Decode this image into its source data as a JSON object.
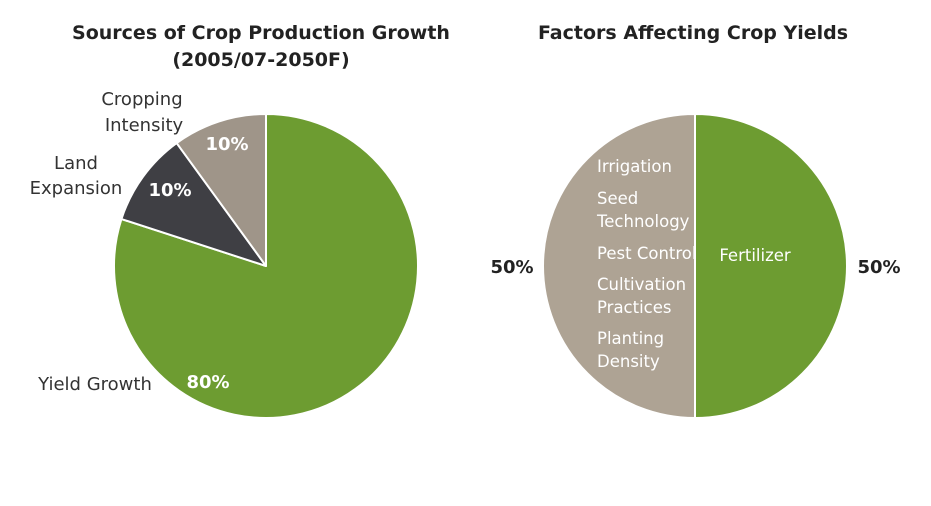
{
  "chart_data": [
    {
      "type": "pie",
      "title": "Sources of Crop Production Growth",
      "subtitle": "(2005/07-2050F)",
      "slices": [
        {
          "label": "Yield Growth",
          "value": 80,
          "value_label": "80%",
          "color": "#6d9c31"
        },
        {
          "label_lines": [
            "Land",
            "Expansion"
          ],
          "value": 10,
          "value_label": "10%",
          "color": "#3f3f44"
        },
        {
          "label_lines": [
            "Cropping",
            "Intensity"
          ],
          "value": 10,
          "value_label": "10%",
          "color": "#9f9589"
        }
      ]
    },
    {
      "type": "pie",
      "title": "Factors Affecting Crop Yields",
      "slices": [
        {
          "label": "Fertilizer",
          "value": 50,
          "value_label": "50%",
          "color": "#6d9c31"
        },
        {
          "value": 50,
          "value_label": "50%",
          "color": "#aea394",
          "items": [
            "Irrigation",
            "Seed Technology",
            "Pest Control",
            "Cultivation Practices",
            "Planting Density"
          ],
          "item_lines": [
            [
              "Irrigation"
            ],
            [
              "Seed",
              "Technology"
            ],
            [
              "Pest Control"
            ],
            [
              "Cultivation",
              "Practices"
            ],
            [
              "Planting",
              "Density"
            ]
          ]
        }
      ]
    }
  ]
}
